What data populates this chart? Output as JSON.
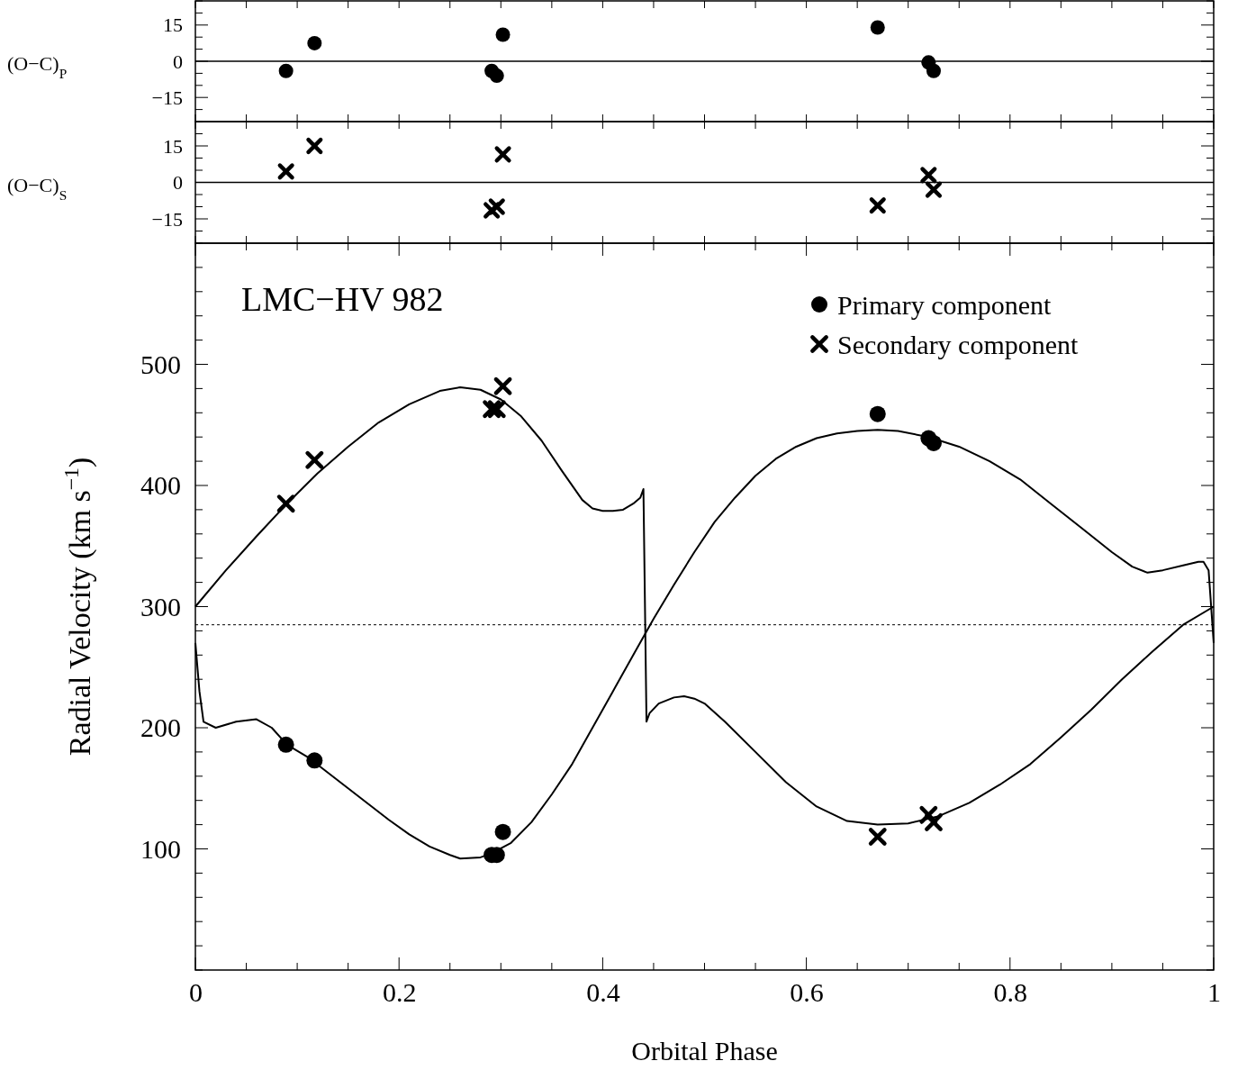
{
  "chart_data": [
    {
      "type": "scatter",
      "ylabel": "(O−C)$_{P}$",
      "xlim": [
        0,
        1
      ],
      "ylim": [
        -25,
        25
      ],
      "tick_labels": "y",
      "xticks": [
        {
          "value": 0,
          "label": null
        },
        {
          "value": 0.05,
          "label": null
        },
        {
          "value": 0.1,
          "label": null
        },
        {
          "value": 0.15,
          "label": null
        },
        {
          "value": 0.2,
          "label": null
        },
        {
          "value": 0.25,
          "label": null
        },
        {
          "value": 0.3,
          "label": null
        },
        {
          "value": 0.35,
          "label": null
        },
        {
          "value": 0.4,
          "label": null
        },
        {
          "value": 0.45,
          "label": null
        },
        {
          "value": 0.5,
          "label": null
        },
        {
          "value": 0.55,
          "label": null
        },
        {
          "value": 0.6,
          "label": null
        },
        {
          "value": 0.65,
          "label": null
        },
        {
          "value": 0.7,
          "label": null
        },
        {
          "value": 0.75,
          "label": null
        },
        {
          "value": 0.8,
          "label": null
        },
        {
          "value": 0.85,
          "label": null
        },
        {
          "value": 0.9,
          "label": null
        },
        {
          "value": 0.95,
          "label": null
        },
        {
          "value": 1,
          "label": null
        }
      ],
      "yticks": [
        {
          "value": -25,
          "label": null
        },
        {
          "value": -20,
          "label": null
        },
        {
          "value": -15,
          "label": "−15"
        },
        {
          "value": -10,
          "label": null
        },
        {
          "value": -5,
          "label": null
        },
        0,
        {
          "value": 5,
          "label": null
        },
        {
          "value": 10,
          "label": null
        },
        15,
        {
          "value": 20,
          "label": null
        },
        {
          "value": 25,
          "label": null
        }
      ],
      "ref_lines": [
        {
          "axis": "y",
          "value": 0,
          "color": "#000000",
          "line_style": "solid"
        }
      ],
      "series": [
        {
          "marker": "circle",
          "color": "#000000",
          "x": [
            0.089,
            0.117,
            0.291,
            0.296,
            0.302,
            0.67,
            0.72,
            0.725
          ],
          "values": [
            -4,
            7.5,
            -4,
            -6,
            11,
            14,
            -0.5,
            -4
          ]
        }
      ]
    },
    {
      "type": "scatter",
      "ylabel": "(O−C)$_{S}$",
      "xlim": [
        0,
        1
      ],
      "ylim": [
        -25,
        25
      ],
      "tick_labels": "y",
      "xticks": [
        {
          "value": 0,
          "label": null
        },
        {
          "value": 0.05,
          "label": null
        },
        {
          "value": 0.1,
          "label": null
        },
        {
          "value": 0.15,
          "label": null
        },
        {
          "value": 0.2,
          "label": null
        },
        {
          "value": 0.25,
          "label": null
        },
        {
          "value": 0.3,
          "label": null
        },
        {
          "value": 0.35,
          "label": null
        },
        {
          "value": 0.4,
          "label": null
        },
        {
          "value": 0.45,
          "label": null
        },
        {
          "value": 0.5,
          "label": null
        },
        {
          "value": 0.55,
          "label": null
        },
        {
          "value": 0.6,
          "label": null
        },
        {
          "value": 0.65,
          "label": null
        },
        {
          "value": 0.7,
          "label": null
        },
        {
          "value": 0.75,
          "label": null
        },
        {
          "value": 0.8,
          "label": null
        },
        {
          "value": 0.85,
          "label": null
        },
        {
          "value": 0.9,
          "label": null
        },
        {
          "value": 0.95,
          "label": null
        },
        {
          "value": 1,
          "label": null
        }
      ],
      "yticks": [
        {
          "value": -25,
          "label": null
        },
        {
          "value": -20,
          "label": null
        },
        {
          "value": -15,
          "label": "−15"
        },
        {
          "value": -10,
          "label": null
        },
        {
          "value": -5,
          "label": null
        },
        0,
        {
          "value": 5,
          "label": null
        },
        {
          "value": 10,
          "label": null
        },
        15,
        {
          "value": 20,
          "label": null
        },
        {
          "value": 25,
          "label": null
        }
      ],
      "ref_lines": [
        {
          "axis": "y",
          "value": 0,
          "color": "#000000",
          "line_style": "solid"
        }
      ],
      "series": [
        {
          "marker": "cross",
          "color": "#000000",
          "x": [
            0.089,
            0.117,
            0.291,
            0.296,
            0.302,
            0.67,
            0.72,
            0.725
          ],
          "values": [
            4.5,
            15,
            -11.5,
            -10,
            11.5,
            -9.5,
            3,
            -3
          ]
        }
      ]
    },
    {
      "type": "scatter",
      "xlabel": "Orbital Phase",
      "ylabel": "Radial Velocity (km s$^{−1}$)",
      "annotations": [
        "LMC−HV 982"
      ],
      "legend": "top right",
      "xlim": [
        0,
        1
      ],
      "ylim": [
        0,
        600
      ],
      "xticks": [
        0,
        {
          "value": 0.05,
          "label": null
        },
        {
          "value": 0.1,
          "label": null
        },
        {
          "value": 0.15,
          "label": null
        },
        0.2,
        {
          "value": 0.25,
          "label": null
        },
        {
          "value": 0.3,
          "label": null
        },
        {
          "value": 0.35,
          "label": null
        },
        0.4,
        {
          "value": 0.45,
          "label": null
        },
        {
          "value": 0.5,
          "label": null
        },
        {
          "value": 0.55,
          "label": null
        },
        0.6,
        {
          "value": 0.65,
          "label": null
        },
        {
          "value": 0.7,
          "label": null
        },
        {
          "value": 0.75,
          "label": null
        },
        0.8,
        {
          "value": 0.85,
          "label": null
        },
        {
          "value": 0.9,
          "label": null
        },
        {
          "value": 0.95,
          "label": null
        },
        1
      ],
      "yticks": [
        {
          "value": 0,
          "label": null
        },
        {
          "value": 20,
          "label": null
        },
        {
          "value": 40,
          "label": null
        },
        {
          "value": 60,
          "label": null
        },
        {
          "value": 80,
          "label": null
        },
        100,
        {
          "value": 120,
          "label": null
        },
        {
          "value": 140,
          "label": null
        },
        {
          "value": 160,
          "label": null
        },
        {
          "value": 180,
          "label": null
        },
        200,
        {
          "value": 220,
          "label": null
        },
        {
          "value": 240,
          "label": null
        },
        {
          "value": 260,
          "label": null
        },
        {
          "value": 280,
          "label": null
        },
        300,
        {
          "value": 320,
          "label": null
        },
        {
          "value": 340,
          "label": null
        },
        {
          "value": 360,
          "label": null
        },
        {
          "value": 380,
          "label": null
        },
        400,
        {
          "value": 420,
          "label": null
        },
        {
          "value": 440,
          "label": null
        },
        {
          "value": 460,
          "label": null
        },
        {
          "value": 480,
          "label": null
        },
        500,
        {
          "value": 520,
          "label": null
        },
        {
          "value": 540,
          "label": null
        },
        {
          "value": 560,
          "label": null
        },
        {
          "value": 580,
          "label": null
        },
        {
          "value": 600,
          "label": null
        }
      ],
      "ref_lines": [
        {
          "axis": "y",
          "value": 285,
          "color": "#000000",
          "line_style": "dotted"
        }
      ],
      "series": [
        {
          "type": "line",
          "line_style": "solid",
          "color": "#000000",
          "x": [
            0,
            0.004,
            0.008,
            0.02,
            0.04,
            0.06,
            0.075,
            0.09,
            0.11,
            0.13,
            0.15,
            0.17,
            0.19,
            0.21,
            0.23,
            0.25,
            0.26,
            0.28,
            0.29,
            0.31,
            0.33,
            0.35,
            0.37,
            0.39,
            0.41,
            0.43,
            0.45,
            0.47,
            0.49,
            0.51,
            0.53,
            0.55,
            0.57,
            0.59,
            0.61,
            0.63,
            0.65,
            0.67,
            0.69,
            0.72,
            0.75,
            0.78,
            0.81,
            0.84,
            0.87,
            0.9,
            0.92,
            0.935,
            0.95,
            0.97,
            0.985,
            0.99,
            0.995,
            1
          ],
          "values": [
            270,
            230,
            205,
            200,
            205,
            207,
            200,
            186,
            176,
            163,
            150,
            137,
            124,
            112,
            102,
            95,
            92,
            93,
            96,
            105,
            122,
            145,
            170,
            200,
            230,
            260,
            290,
            318,
            345,
            370,
            390,
            408,
            422,
            432,
            439,
            443,
            445,
            446,
            445,
            440,
            432,
            420,
            405,
            385,
            365,
            345,
            333,
            328,
            330,
            334,
            337,
            337,
            330,
            270
          ]
        },
        {
          "type": "line",
          "line_style": "solid",
          "color": "#000000",
          "x": [
            0,
            0.03,
            0.06,
            0.09,
            0.12,
            0.15,
            0.18,
            0.21,
            0.24,
            0.26,
            0.28,
            0.3,
            0.32,
            0.34,
            0.36,
            0.38,
            0.39,
            0.4,
            0.41,
            0.42,
            0.43,
            0.437,
            0.44,
            0.443,
            0.446,
            0.455,
            0.47,
            0.48,
            0.49,
            0.5,
            0.52,
            0.55,
            0.58,
            0.61,
            0.64,
            0.67,
            0.7,
            0.73,
            0.76,
            0.79,
            0.82,
            0.85,
            0.88,
            0.91,
            0.94,
            0.97,
            1
          ],
          "values": [
            300,
            330,
            358,
            385,
            410,
            432,
            452,
            467,
            478,
            481,
            479,
            471,
            457,
            437,
            412,
            388,
            381,
            379,
            379,
            380,
            385,
            390,
            397,
            205,
            212,
            220,
            225,
            226,
            224,
            220,
            205,
            180,
            155,
            135,
            123,
            120,
            121,
            127,
            138,
            153,
            170,
            192,
            215,
            240,
            263,
            285,
            300
          ]
        },
        {
          "name": "Primary component",
          "marker": "circle",
          "color": "#000000",
          "x": [
            0.089,
            0.117,
            0.291,
            0.296,
            0.302,
            0.67,
            0.72,
            0.725
          ],
          "values": [
            186,
            173,
            95,
            95,
            114,
            459,
            439,
            435
          ]
        },
        {
          "name": "Secondary component",
          "marker": "cross",
          "color": "#000000",
          "x": [
            0.089,
            0.117,
            0.291,
            0.296,
            0.302,
            0.67,
            0.72,
            0.725
          ],
          "values": [
            385,
            421,
            463,
            463,
            482,
            110,
            128,
            122
          ]
        }
      ]
    }
  ]
}
